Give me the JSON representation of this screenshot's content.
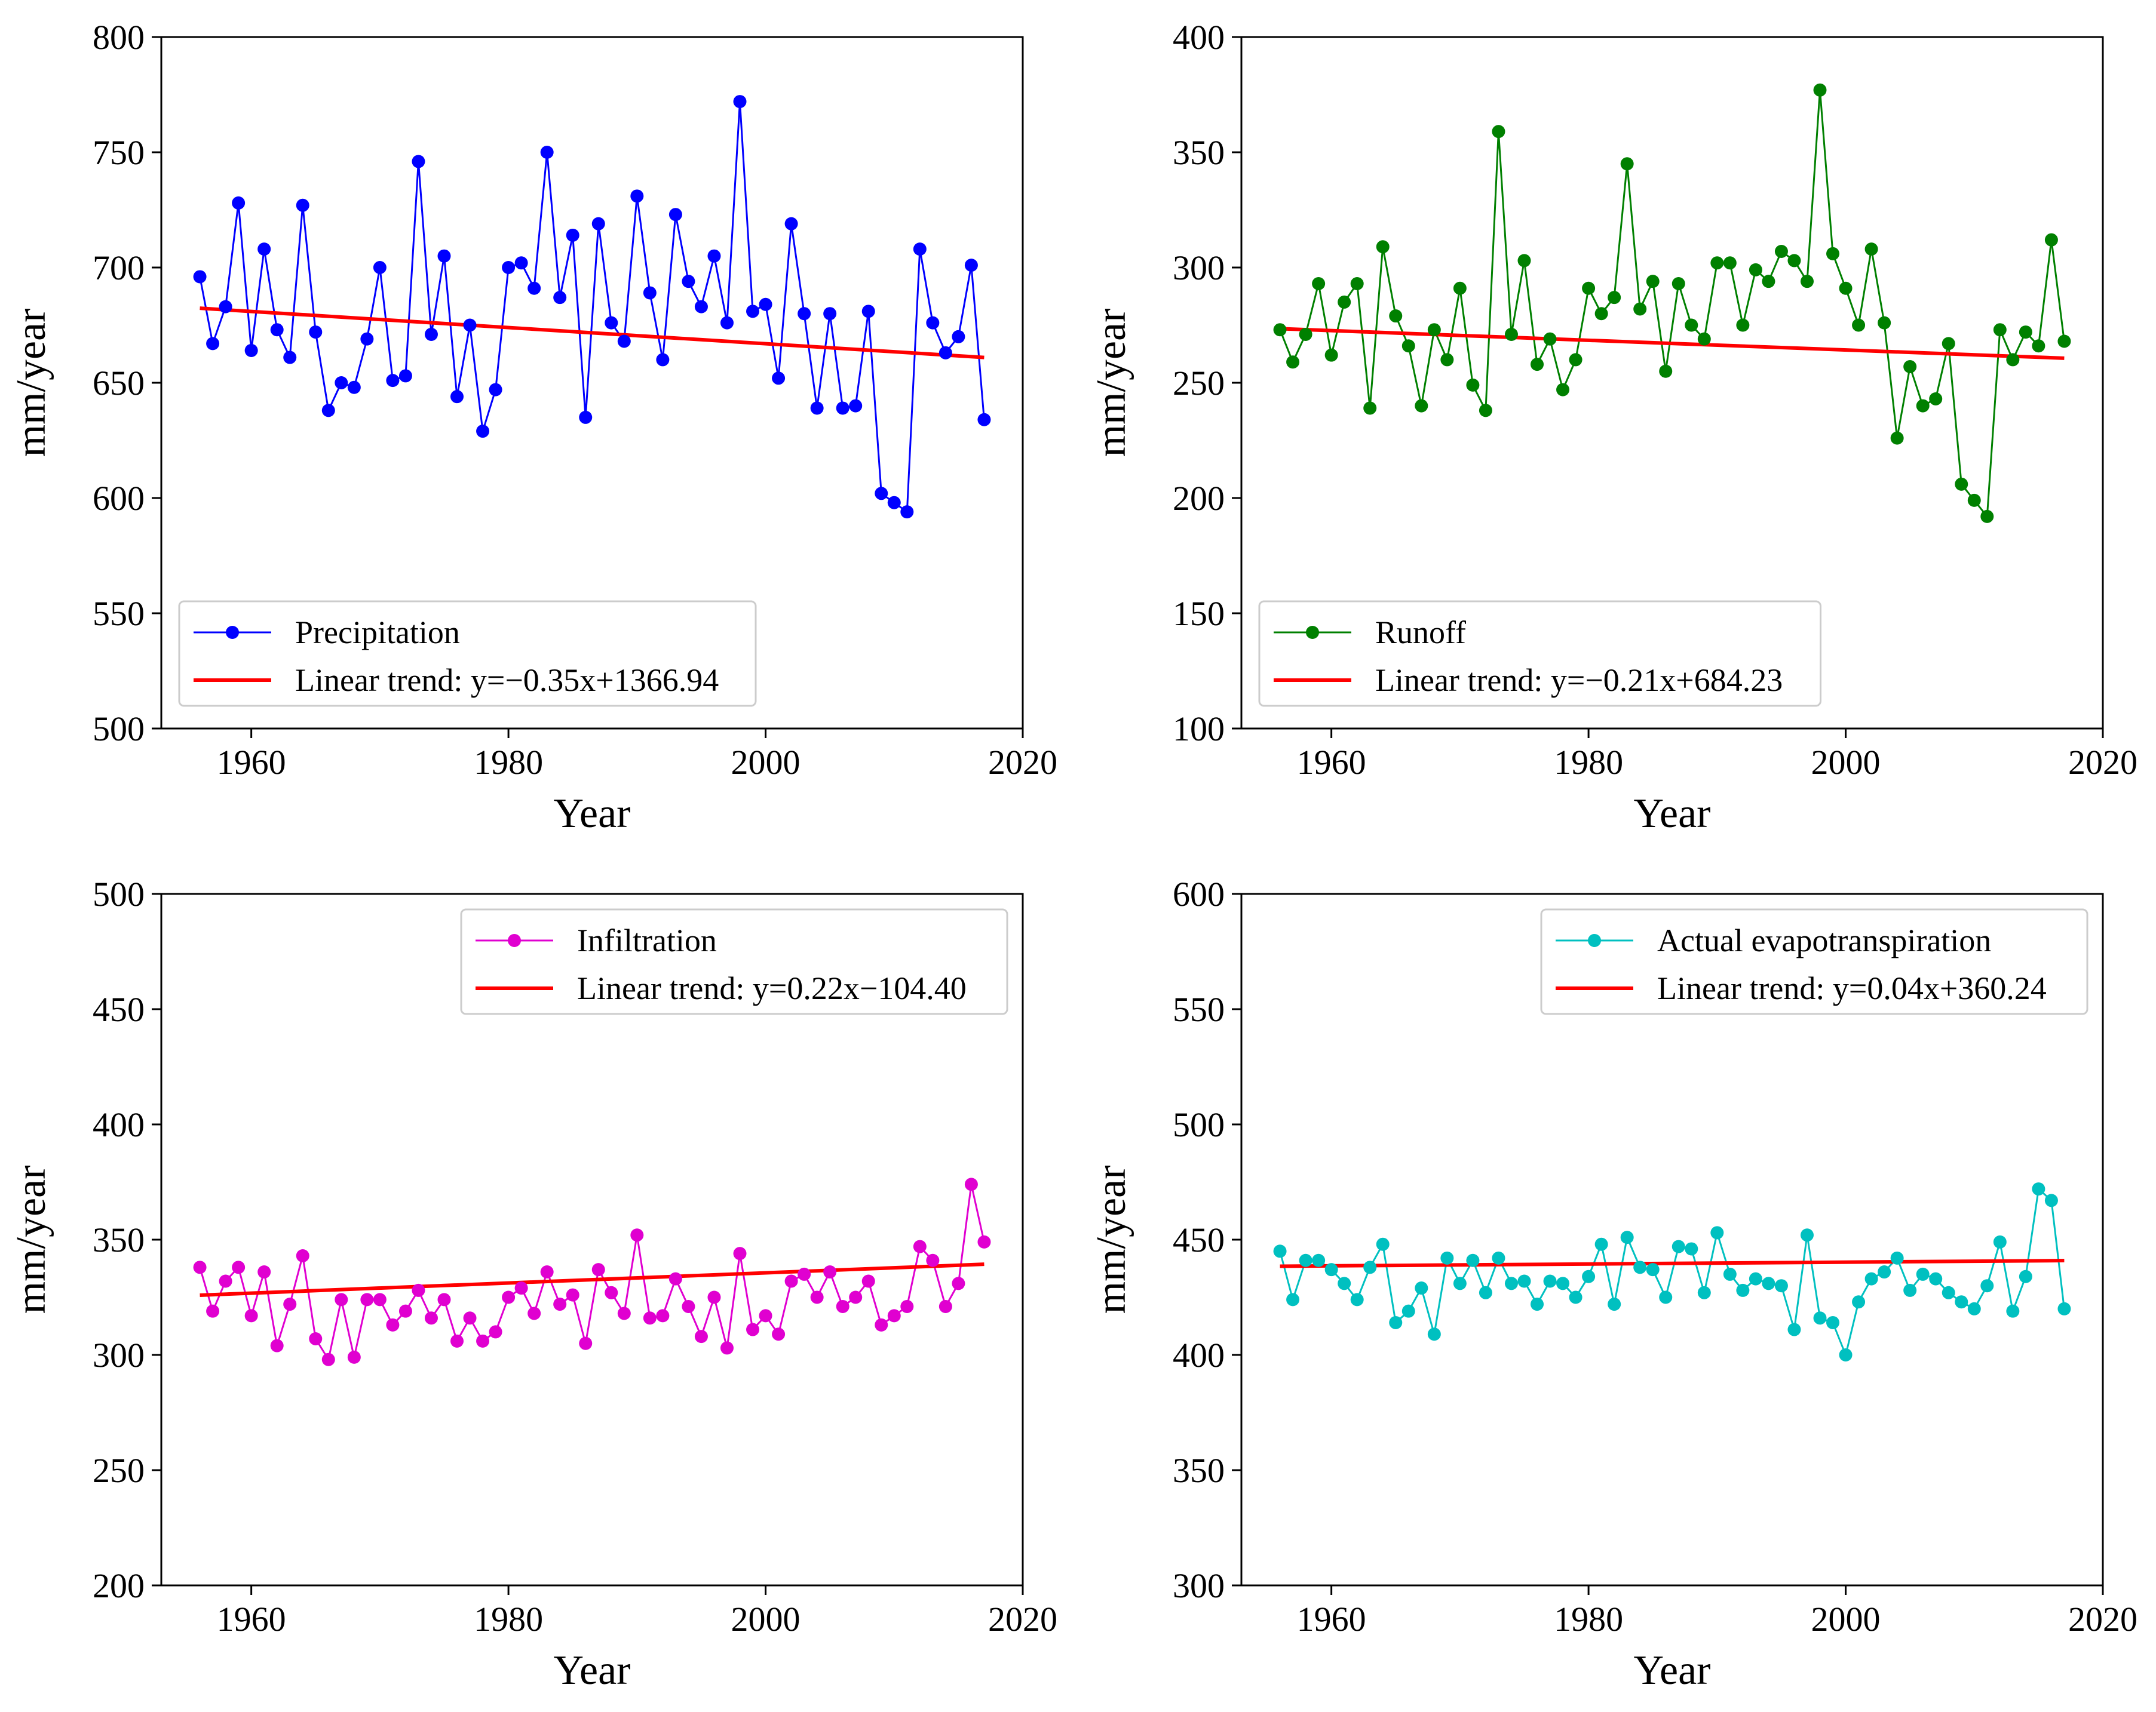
{
  "figure": {
    "description_title": ""
  },
  "chart_data": [
    {
      "type": "line",
      "xlabel": "Year",
      "ylabel": "mm/year",
      "xlim": [
        1953,
        2020
      ],
      "ylim": [
        500,
        800
      ],
      "xticks": [
        1960,
        1980,
        2000,
        2020
      ],
      "yticks": [
        500,
        550,
        600,
        650,
        700,
        750,
        800
      ],
      "legend_position": "lower-left",
      "color": "#0000ff",
      "series": [
        {
          "name": "Precipitation",
          "x": [
            1956,
            1957,
            1958,
            1959,
            1960,
            1961,
            1962,
            1963,
            1964,
            1965,
            1966,
            1967,
            1968,
            1969,
            1970,
            1971,
            1972,
            1973,
            1974,
            1975,
            1976,
            1977,
            1978,
            1979,
            1980,
            1981,
            1982,
            1983,
            1984,
            1985,
            1986,
            1987,
            1988,
            1989,
            1990,
            1991,
            1992,
            1993,
            1994,
            1995,
            1996,
            1997,
            1998,
            1999,
            2000,
            2001,
            2002,
            2003,
            2004,
            2005,
            2006,
            2007,
            2008,
            2009,
            2010,
            2011,
            2012,
            2013,
            2014,
            2015,
            2016,
            2017
          ],
          "values": [
            696,
            667,
            683,
            728,
            664,
            708,
            673,
            661,
            727,
            672,
            638,
            650,
            648,
            669,
            700,
            651,
            653,
            746,
            671,
            705,
            644,
            675,
            629,
            647,
            700,
            702,
            691,
            750,
            687,
            714,
            635,
            719,
            676,
            668,
            731,
            689,
            660,
            723,
            694,
            683,
            705,
            676,
            772,
            681,
            684,
            652,
            719,
            680,
            639,
            680,
            639,
            640,
            681,
            602,
            598,
            594,
            708,
            676,
            663,
            670,
            701,
            634
          ]
        },
        {
          "name": "Linear trend: y=−0.35x+1366.94",
          "slope": -0.35,
          "intercept": 1366.94,
          "color": "#ff0000"
        }
      ]
    },
    {
      "type": "line",
      "xlabel": "Year",
      "ylabel": "mm/year",
      "xlim": [
        1953,
        2020
      ],
      "ylim": [
        100,
        400
      ],
      "xticks": [
        1960,
        1980,
        2000,
        2020
      ],
      "yticks": [
        100,
        150,
        200,
        250,
        300,
        350,
        400
      ],
      "legend_position": "lower-left",
      "color": "#008000",
      "series": [
        {
          "name": "Runoff",
          "x": [
            1956,
            1957,
            1958,
            1959,
            1960,
            1961,
            1962,
            1963,
            1964,
            1965,
            1966,
            1967,
            1968,
            1969,
            1970,
            1971,
            1972,
            1973,
            1974,
            1975,
            1976,
            1977,
            1978,
            1979,
            1980,
            1981,
            1982,
            1983,
            1984,
            1985,
            1986,
            1987,
            1988,
            1989,
            1990,
            1991,
            1992,
            1993,
            1994,
            1995,
            1996,
            1997,
            1998,
            1999,
            2000,
            2001,
            2002,
            2003,
            2004,
            2005,
            2006,
            2007,
            2008,
            2009,
            2010,
            2011,
            2012,
            2013,
            2014,
            2015,
            2016,
            2017
          ],
          "values": [
            273,
            259,
            271,
            293,
            262,
            285,
            293,
            239,
            309,
            279,
            266,
            240,
            273,
            260,
            291,
            249,
            238,
            359,
            271,
            303,
            258,
            269,
            247,
            260,
            291,
            280,
            287,
            345,
            282,
            294,
            255,
            293,
            275,
            269,
            302,
            302,
            275,
            299,
            294,
            307,
            303,
            294,
            377,
            306,
            291,
            275,
            308,
            276,
            226,
            257,
            240,
            243,
            267,
            206,
            199,
            192,
            273,
            260,
            272,
            266,
            312,
            268
          ]
        },
        {
          "name": "Linear trend: y=−0.21x+684.23",
          "slope": -0.21,
          "intercept": 684.23,
          "color": "#ff0000"
        }
      ]
    },
    {
      "type": "line",
      "xlabel": "Year",
      "ylabel": "mm/year",
      "xlim": [
        1953,
        2020
      ],
      "ylim": [
        200,
        500
      ],
      "xticks": [
        1960,
        1980,
        2000,
        2020
      ],
      "yticks": [
        200,
        250,
        300,
        350,
        400,
        450,
        500
      ],
      "legend_position": "upper-right",
      "color": "#e000d0",
      "series": [
        {
          "name": "Infiltration",
          "x": [
            1956,
            1957,
            1958,
            1959,
            1960,
            1961,
            1962,
            1963,
            1964,
            1965,
            1966,
            1967,
            1968,
            1969,
            1970,
            1971,
            1972,
            1973,
            1974,
            1975,
            1976,
            1977,
            1978,
            1979,
            1980,
            1981,
            1982,
            1983,
            1984,
            1985,
            1986,
            1987,
            1988,
            1989,
            1990,
            1991,
            1992,
            1993,
            1994,
            1995,
            1996,
            1997,
            1998,
            1999,
            2000,
            2001,
            2002,
            2003,
            2004,
            2005,
            2006,
            2007,
            2008,
            2009,
            2010,
            2011,
            2012,
            2013,
            2014,
            2015,
            2016,
            2017
          ],
          "values": [
            338,
            319,
            332,
            338,
            317,
            336,
            304,
            322,
            343,
            307,
            298,
            324,
            299,
            324,
            324,
            313,
            319,
            328,
            316,
            324,
            306,
            316,
            306,
            310,
            325,
            329,
            318,
            336,
            322,
            326,
            305,
            337,
            327,
            318,
            352,
            316,
            317,
            333,
            321,
            308,
            325,
            303,
            344,
            311,
            317,
            309,
            332,
            335,
            325,
            336,
            321,
            325,
            332,
            313,
            317,
            321,
            347,
            341,
            321,
            331,
            374,
            349
          ]
        },
        {
          "name": "Linear trend: y=0.22x−104.40",
          "slope": 0.22,
          "intercept": -104.4,
          "color": "#ff0000"
        }
      ]
    },
    {
      "type": "line",
      "xlabel": "Year",
      "ylabel": "mm/year",
      "xlim": [
        1953,
        2020
      ],
      "ylim": [
        300,
        600
      ],
      "xticks": [
        1960,
        1980,
        2000,
        2020
      ],
      "yticks": [
        300,
        350,
        400,
        450,
        500,
        550,
        600
      ],
      "legend_position": "upper-right",
      "color": "#00c0c0",
      "series": [
        {
          "name": "Actual evapotranspiration",
          "x": [
            1956,
            1957,
            1958,
            1959,
            1960,
            1961,
            1962,
            1963,
            1964,
            1965,
            1966,
            1967,
            1968,
            1969,
            1970,
            1971,
            1972,
            1973,
            1974,
            1975,
            1976,
            1977,
            1978,
            1979,
            1980,
            1981,
            1982,
            1983,
            1984,
            1985,
            1986,
            1987,
            1988,
            1989,
            1990,
            1991,
            1992,
            1993,
            1994,
            1995,
            1996,
            1997,
            1998,
            1999,
            2000,
            2001,
            2002,
            2003,
            2004,
            2005,
            2006,
            2007,
            2008,
            2009,
            2010,
            2011,
            2012,
            2013,
            2014,
            2015,
            2016,
            2017
          ],
          "values": [
            445,
            424,
            441,
            441,
            437,
            431,
            424,
            438,
            448,
            414,
            419,
            429,
            409,
            442,
            431,
            441,
            427,
            442,
            431,
            432,
            422,
            432,
            431,
            425,
            434,
            448,
            422,
            451,
            438,
            437,
            425,
            447,
            446,
            427,
            453,
            435,
            428,
            433,
            431,
            430,
            411,
            452,
            416,
            414,
            400,
            423,
            433,
            436,
            442,
            428,
            435,
            433,
            427,
            423,
            420,
            430,
            449,
            419,
            434,
            472,
            467,
            420
          ]
        },
        {
          "name": "Linear trend: y=0.04x+360.24",
          "slope": 0.04,
          "intercept": 360.24,
          "color": "#ff0000"
        }
      ]
    }
  ]
}
